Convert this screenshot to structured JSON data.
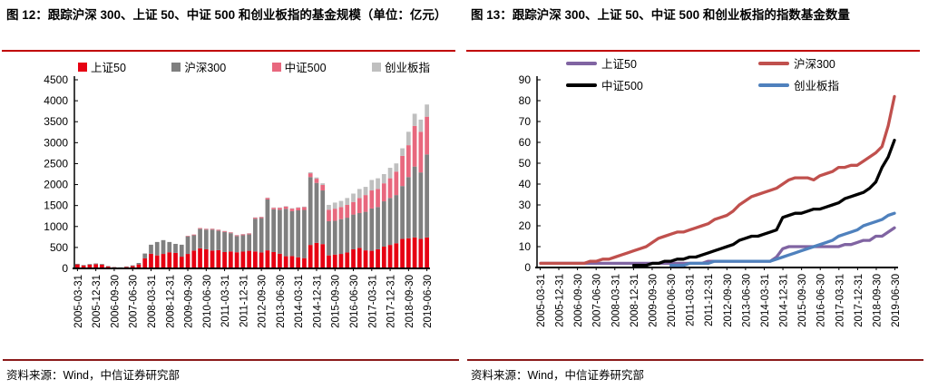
{
  "colors": {
    "title_rule": "#C00000",
    "footer_rule": "#8B1A1A",
    "axis": "#000000"
  },
  "figure12": {
    "title": "图 12：跟踪沪深 300、上证 50、中证 500 和创业板指的基金规模（单位：亿元）",
    "source": "资料来源：Wind，中信证券研究部"
  },
  "figure13": {
    "title": "图 13：跟踪沪深 300、上证 50、中证 500 和创业板指的指数基金数量",
    "source": "资料来源：Wind，中信证券研究部"
  },
  "chart_data": [
    {
      "id": "figure12",
      "type": "bar",
      "stacked": true,
      "title": "跟踪沪深300、上证50、中证500和创业板指的基金规模",
      "unit": "亿元",
      "ylim": [
        0,
        4500
      ],
      "ytick_step": 500,
      "grid": false,
      "legend_position": "top",
      "categories": [
        "2005-03-31",
        "2005-06-30",
        "2005-09-30",
        "2005-12-31",
        "2006-03-31",
        "2006-06-30",
        "2006-09-30",
        "2006-12-31",
        "2007-03-31",
        "2007-06-30",
        "2007-09-30",
        "2007-12-31",
        "2008-03-31",
        "2008-06-30",
        "2008-09-30",
        "2008-12-31",
        "2009-03-31",
        "2009-06-30",
        "2009-09-30",
        "2009-12-31",
        "2010-03-31",
        "2010-06-30",
        "2010-09-30",
        "2010-12-31",
        "2011-03-31",
        "2011-06-30",
        "2011-09-30",
        "2011-12-31",
        "2012-03-31",
        "2012-06-30",
        "2012-09-30",
        "2012-12-31",
        "2013-03-31",
        "2013-06-30",
        "2013-09-30",
        "2013-12-31",
        "2014-03-31",
        "2014-06-30",
        "2014-09-30",
        "2014-12-31",
        "2015-03-31",
        "2015-06-30",
        "2015-09-30",
        "2015-12-31",
        "2016-03-31",
        "2016-06-30",
        "2016-09-30",
        "2016-12-31",
        "2017-03-31",
        "2017-06-30",
        "2017-09-30",
        "2017-12-31",
        "2018-03-31",
        "2018-06-30",
        "2018-09-30",
        "2018-12-31",
        "2019-03-31",
        "2019-06-30"
      ],
      "x_tick_labels": [
        "2005-03-31",
        "2005-12-31",
        "2006-09-30",
        "2007-06-30",
        "2008-03-31",
        "2008-12-31",
        "2009-09-30",
        "2010-06-30",
        "2011-03-31",
        "2011-12-31",
        "2012-09-30",
        "2013-06-30",
        "2014-03-31",
        "2014-12-31",
        "2015-09-30",
        "2016-06-30",
        "2017-03-31",
        "2017-12-31",
        "2018-09-30",
        "2019-06-30"
      ],
      "series": [
        {
          "key": "sse50",
          "name": "上证50",
          "color": "#E60012",
          "values": [
            95,
            70,
            90,
            100,
            88,
            45,
            28,
            18,
            35,
            55,
            95,
            240,
            350,
            310,
            345,
            385,
            370,
            280,
            345,
            425,
            480,
            455,
            425,
            435,
            390,
            405,
            385,
            400,
            420,
            405,
            380,
            430,
            390,
            350,
            290,
            295,
            265,
            245,
            560,
            610,
            580,
            310,
            330,
            345,
            380,
            455,
            490,
            430,
            420,
            455,
            520,
            560,
            600,
            705,
            720,
            740,
            705,
            740
          ]
        },
        {
          "key": "hs300",
          "name": "沪深300",
          "color": "#7F7F7F",
          "values": [
            15,
            12,
            15,
            18,
            18,
            12,
            8,
            8,
            12,
            18,
            35,
            115,
            215,
            320,
            330,
            245,
            215,
            285,
            420,
            365,
            465,
            470,
            500,
            465,
            480,
            435,
            385,
            390,
            390,
            780,
            820,
            1215,
            1020,
            1050,
            1130,
            1070,
            1120,
            1150,
            1620,
            1430,
            1280,
            815,
            805,
            830,
            830,
            830,
            830,
            920,
            1010,
            1010,
            1080,
            1120,
            1150,
            1260,
            1460,
            1690,
            1585,
            1980
          ]
        },
        {
          "key": "csi500",
          "name": "中证500",
          "color": "#E8687E",
          "values": [
            0,
            0,
            0,
            0,
            0,
            0,
            0,
            0,
            0,
            0,
            0,
            0,
            0,
            0,
            0,
            0,
            0,
            0,
            12,
            18,
            18,
            18,
            20,
            20,
            20,
            20,
            20,
            22,
            22,
            25,
            25,
            35,
            35,
            45,
            55,
            60,
            62,
            65,
            90,
            100,
            130,
            275,
            290,
            290,
            305,
            300,
            360,
            400,
            430,
            430,
            430,
            470,
            560,
            720,
            760,
            970,
            970,
            900
          ]
        },
        {
          "key": "chinext",
          "name": "创业板指",
          "color": "#BFBFBF",
          "values": [
            0,
            0,
            0,
            0,
            0,
            0,
            0,
            0,
            0,
            0,
            0,
            0,
            0,
            0,
            0,
            0,
            0,
            0,
            0,
            0,
            0,
            6,
            6,
            6,
            6,
            6,
            6,
            8,
            8,
            8,
            8,
            10,
            10,
            10,
            12,
            12,
            12,
            15,
            25,
            30,
            40,
            115,
            145,
            145,
            165,
            200,
            215,
            195,
            250,
            255,
            220,
            250,
            195,
            180,
            320,
            290,
            290,
            290
          ]
        }
      ]
    },
    {
      "id": "figure13",
      "type": "line",
      "stacked": false,
      "title": "跟踪沪深300、上证50、中证500和创业板指的指数基金数量",
      "unit": "只",
      "ylim": [
        0,
        90
      ],
      "ytick_step": 10,
      "grid": false,
      "legend_position": "top",
      "categories": [
        "2005-03-31",
        "2005-06-30",
        "2005-09-30",
        "2005-12-31",
        "2006-03-31",
        "2006-06-30",
        "2006-09-30",
        "2006-12-31",
        "2007-03-31",
        "2007-06-30",
        "2007-09-30",
        "2007-12-31",
        "2008-03-31",
        "2008-06-30",
        "2008-09-30",
        "2008-12-31",
        "2009-03-31",
        "2009-06-30",
        "2009-09-30",
        "2009-12-31",
        "2010-03-31",
        "2010-06-30",
        "2010-09-30",
        "2010-12-31",
        "2011-03-31",
        "2011-06-30",
        "2011-09-30",
        "2011-12-31",
        "2012-03-31",
        "2012-06-30",
        "2012-09-30",
        "2012-12-31",
        "2013-03-31",
        "2013-06-30",
        "2013-09-30",
        "2013-12-31",
        "2014-03-31",
        "2014-06-30",
        "2014-09-30",
        "2014-12-31",
        "2015-03-31",
        "2015-06-30",
        "2015-09-30",
        "2015-12-31",
        "2016-03-31",
        "2016-06-30",
        "2016-09-30",
        "2016-12-31",
        "2017-03-31",
        "2017-06-30",
        "2017-09-30",
        "2017-12-31",
        "2018-03-31",
        "2018-06-30",
        "2018-09-30",
        "2018-12-31",
        "2019-03-31",
        "2019-06-30"
      ],
      "x_tick_labels": [
        "2005-03-31",
        "2005-12-31",
        "2006-09-30",
        "2007-06-30",
        "2008-03-31",
        "2008-12-31",
        "2009-09-30",
        "2010-06-30",
        "2011-03-31",
        "2011-12-31",
        "2012-09-30",
        "2013-06-30",
        "2014-03-31",
        "2014-12-31",
        "2015-09-30",
        "2016-06-30",
        "2017-03-31",
        "2017-12-31",
        "2018-09-30",
        "2019-06-30"
      ],
      "series": [
        {
          "key": "sse50",
          "name": "上证50",
          "color": "#8064A2",
          "values": [
            2,
            2,
            2,
            2,
            2,
            2,
            2,
            2,
            2,
            2,
            2,
            2,
            2,
            2,
            2,
            2,
            2,
            2,
            2,
            2,
            2,
            2,
            2,
            2,
            2,
            2,
            2,
            3,
            3,
            3,
            3,
            3,
            3,
            3,
            3,
            3,
            3,
            3,
            5,
            9,
            10,
            10,
            10,
            10,
            10,
            10,
            10,
            10,
            10,
            11,
            11,
            12,
            13,
            13,
            15,
            15,
            17,
            19
          ]
        },
        {
          "key": "hs300",
          "name": "沪深300",
          "color": "#C0504D",
          "values": [
            2,
            2,
            2,
            2,
            2,
            2,
            2,
            2,
            3,
            3,
            4,
            4,
            5,
            6,
            7,
            8,
            9,
            10,
            12,
            14,
            15,
            16,
            17,
            17,
            18,
            19,
            20,
            21,
            23,
            24,
            25,
            27,
            30,
            32,
            34,
            35,
            36,
            37,
            38,
            40,
            42,
            43,
            43,
            43,
            42,
            44,
            45,
            46,
            48,
            48,
            49,
            49,
            51,
            53,
            55,
            58,
            68,
            82
          ]
        },
        {
          "key": "csi500",
          "name": "中证500",
          "color": "#000000",
          "values": [
            null,
            null,
            null,
            null,
            null,
            null,
            null,
            null,
            null,
            null,
            null,
            null,
            null,
            null,
            null,
            1,
            1,
            1,
            2,
            2,
            3,
            3,
            4,
            4,
            5,
            5,
            6,
            7,
            8,
            9,
            10,
            11,
            13,
            14,
            15,
            15,
            16,
            17,
            18,
            24,
            25,
            26,
            26,
            27,
            28,
            28,
            29,
            30,
            31,
            33,
            34,
            35,
            36,
            38,
            41,
            48,
            53,
            61
          ]
        },
        {
          "key": "chinext",
          "name": "创业板指",
          "color": "#4F81BD",
          "values": [
            null,
            null,
            null,
            null,
            null,
            null,
            null,
            null,
            null,
            null,
            null,
            null,
            null,
            null,
            null,
            null,
            null,
            null,
            null,
            null,
            null,
            1,
            1,
            1,
            2,
            2,
            2,
            2,
            3,
            3,
            3,
            3,
            3,
            3,
            3,
            3,
            3,
            3,
            4,
            5,
            6,
            7,
            8,
            9,
            10,
            11,
            12,
            13,
            15,
            16,
            17,
            18,
            20,
            21,
            22,
            23,
            25,
            26
          ]
        }
      ]
    }
  ]
}
